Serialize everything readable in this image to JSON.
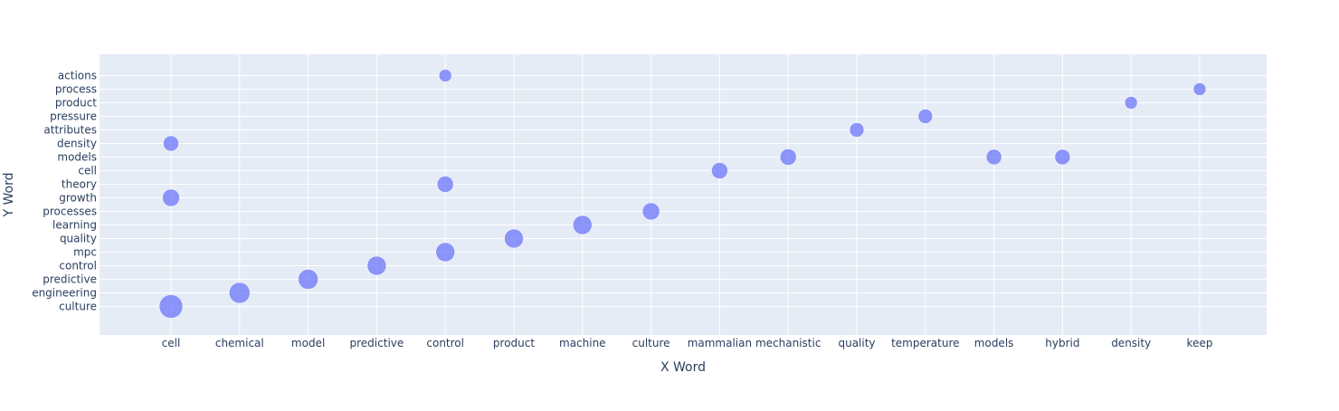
{
  "chart_data": {
    "type": "scatter",
    "xlabel": "X Word",
    "ylabel": "Y Word",
    "x_categories": [
      "cell",
      "chemical",
      "model",
      "predictive",
      "control",
      "product",
      "machine",
      "culture",
      "mammalian",
      "mechanistic",
      "quality",
      "temperature",
      "models",
      "hybrid",
      "density",
      "keep"
    ],
    "y_categories": [
      "culture",
      "engineering",
      "predictive",
      "control",
      "mpc",
      "quality",
      "learning",
      "processes",
      "growth",
      "theory",
      "cell",
      "models",
      "density",
      "attributes",
      "pressure",
      "product",
      "process",
      "actions"
    ],
    "grid": true,
    "colors": {
      "marker": "#636efa",
      "plot_bg": "#e5ecf6",
      "grid": "#ffffff",
      "text": "#2a3f5f"
    },
    "points": [
      {
        "x": "cell",
        "y": "culture",
        "size": 26
      },
      {
        "x": "cell",
        "y": "growth",
        "size": 19
      },
      {
        "x": "cell",
        "y": "density",
        "size": 17
      },
      {
        "x": "chemical",
        "y": "engineering",
        "size": 23
      },
      {
        "x": "model",
        "y": "predictive",
        "size": 22
      },
      {
        "x": "predictive",
        "y": "control",
        "size": 21
      },
      {
        "x": "control",
        "y": "mpc",
        "size": 21
      },
      {
        "x": "control",
        "y": "theory",
        "size": 18
      },
      {
        "x": "control",
        "y": "actions",
        "size": 14
      },
      {
        "x": "product",
        "y": "quality",
        "size": 21
      },
      {
        "x": "machine",
        "y": "learning",
        "size": 21
      },
      {
        "x": "culture",
        "y": "processes",
        "size": 19
      },
      {
        "x": "mammalian",
        "y": "cell",
        "size": 18
      },
      {
        "x": "mechanistic",
        "y": "models",
        "size": 18
      },
      {
        "x": "quality",
        "y": "attributes",
        "size": 16
      },
      {
        "x": "temperature",
        "y": "pressure",
        "size": 16
      },
      {
        "x": "models",
        "y": "models",
        "size": 17
      },
      {
        "x": "hybrid",
        "y": "models",
        "size": 17
      },
      {
        "x": "density",
        "y": "product",
        "size": 14
      },
      {
        "x": "keep",
        "y": "process",
        "size": 14
      }
    ]
  }
}
